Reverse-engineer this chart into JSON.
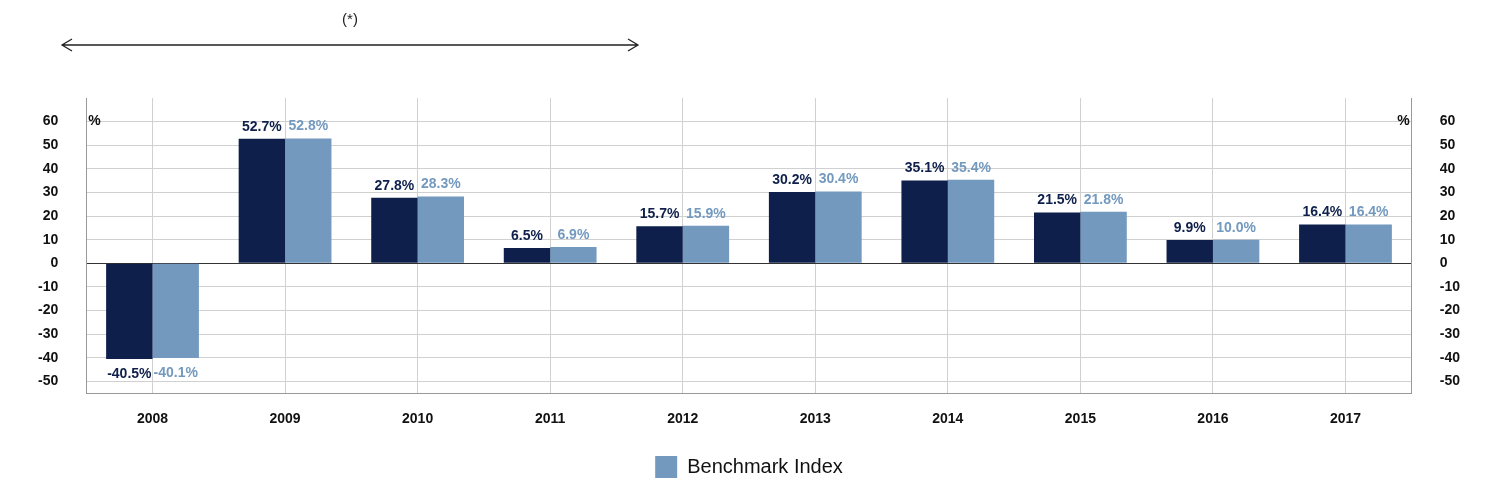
{
  "chart_data": {
    "type": "bar",
    "annotations": [
      "(*)"
    ],
    "ylabel": "%",
    "y2label": "%",
    "categories": [
      "2008",
      "2009",
      "2010",
      "2011",
      "2012",
      "2013",
      "2014",
      "2015",
      "2016",
      "2017"
    ],
    "series": [
      {
        "color": "#0d1f4a",
        "values": [
          -40.5,
          52.7,
          27.8,
          6.5,
          15.7,
          30.2,
          35.1,
          21.5,
          9.9,
          16.4
        ],
        "value_labels": [
          "-40.5%",
          "52.7%",
          "27.8%",
          "6.5%",
          "15.7%",
          "30.2%",
          "35.1%",
          "21.5%",
          "9.9%",
          "16.4%"
        ]
      },
      {
        "name": "Benchmark Index",
        "color": "#7399bf",
        "values": [
          -40.1,
          52.8,
          28.3,
          6.9,
          15.9,
          30.4,
          35.4,
          21.8,
          10.0,
          16.4
        ],
        "value_labels": [
          "-40.1%",
          "52.8%",
          "28.3%",
          "6.9%",
          "15.9%",
          "30.4%",
          "35.4%",
          "21.8%",
          "10.0%",
          "16.4%"
        ]
      }
    ],
    "ylim": [
      -55,
      70
    ],
    "yticks": [
      -50,
      -40,
      -30,
      -20,
      -10,
      0,
      10,
      20,
      30,
      40,
      50,
      60
    ],
    "y2lim": [
      -55,
      70
    ],
    "y2ticks": [
      -50,
      -40,
      -30,
      -20,
      -10,
      0,
      10,
      20,
      30,
      40,
      50,
      60
    ],
    "grid": true,
    "legend": "bottom"
  }
}
